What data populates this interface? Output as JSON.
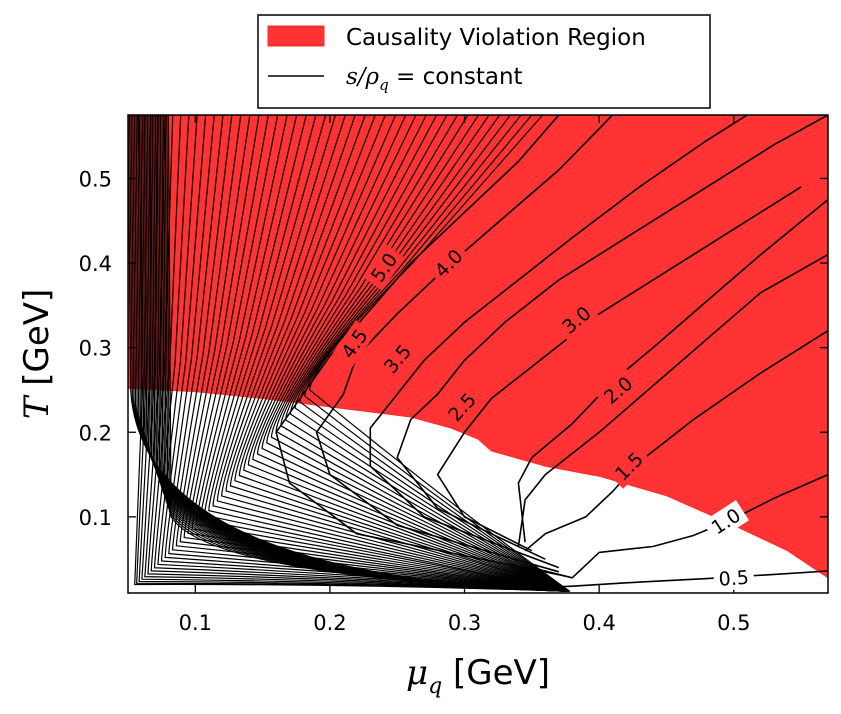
{
  "chart_data": {
    "type": "contour",
    "xlabel": {
      "symbol": "μ",
      "subscript": "q",
      "unit": "[GeV]"
    },
    "ylabel": {
      "symbol": "T",
      "unit": "[GeV]"
    },
    "xlim": [
      0.05,
      0.57
    ],
    "ylim": [
      0.01,
      0.575
    ],
    "xticks": [
      0.1,
      0.2,
      0.3,
      0.4,
      0.5
    ],
    "xtick_labels": [
      "0.1",
      "0.2",
      "0.3",
      "0.4",
      "0.5"
    ],
    "yticks": [
      0.1,
      0.2,
      0.3,
      0.4,
      0.5
    ],
    "ytick_labels": [
      "0.1",
      "0.2",
      "0.3",
      "0.4",
      "0.5"
    ],
    "legend": {
      "position": "top-center",
      "entries": [
        {
          "label": "Causality Violation Region",
          "kind": "patch",
          "color": "#ff3333"
        },
        {
          "label_math": "s/ρ",
          "label_sub": "q",
          "label_rest": " = constant",
          "kind": "line",
          "color": "#000000"
        }
      ]
    },
    "region": {
      "name": "Causality Violation Region",
      "color": "#ff3333",
      "lower_boundary": [
        [
          0.05,
          0.252
        ],
        [
          0.1,
          0.248
        ],
        [
          0.15,
          0.24
        ],
        [
          0.2,
          0.23
        ],
        [
          0.26,
          0.218
        ],
        [
          0.29,
          0.205
        ],
        [
          0.31,
          0.192
        ],
        [
          0.32,
          0.178
        ],
        [
          0.36,
          0.16
        ],
        [
          0.4,
          0.148
        ],
        [
          0.45,
          0.125
        ],
        [
          0.5,
          0.09
        ],
        [
          0.54,
          0.06
        ],
        [
          0.57,
          0.028
        ]
      ]
    },
    "contours": [
      {
        "label": "0.5",
        "points": [
          [
            0.35,
            0.016
          ],
          [
            0.38,
            0.018
          ],
          [
            0.42,
            0.022
          ],
          [
            0.48,
            0.027
          ],
          [
            0.53,
            0.032
          ],
          [
            0.57,
            0.036
          ]
        ],
        "label_at": [
          0.5,
          0.028
        ],
        "label_angle": -4
      },
      {
        "label": "1.0",
        "points": [
          [
            0.35,
            0.04
          ],
          [
            0.38,
            0.028
          ],
          [
            0.4,
            0.058
          ],
          [
            0.44,
            0.065
          ],
          [
            0.47,
            0.078
          ],
          [
            0.5,
            0.098
          ],
          [
            0.53,
            0.122
          ],
          [
            0.57,
            0.15
          ]
        ],
        "label_at": [
          0.494,
          0.095
        ],
        "label_angle": -33
      },
      {
        "label": "1.5",
        "points": [
          [
            0.345,
            0.06
          ],
          [
            0.36,
            0.08
          ],
          [
            0.39,
            0.1
          ],
          [
            0.41,
            0.13
          ],
          [
            0.43,
            0.165
          ],
          [
            0.47,
            0.215
          ],
          [
            0.52,
            0.27
          ],
          [
            0.57,
            0.32
          ]
        ],
        "label_at": [
          0.422,
          0.16
        ],
        "label_angle": -45
      },
      {
        "label": "2.0",
        "points": [
          [
            0.34,
            0.065
          ],
          [
            0.345,
            0.12
          ],
          [
            0.36,
            0.15
          ],
          [
            0.4,
            0.2
          ],
          [
            0.44,
            0.255
          ],
          [
            0.48,
            0.31
          ],
          [
            0.52,
            0.365
          ],
          [
            0.57,
            0.41
          ]
        ],
        "label_at": [
          0.414,
          0.25
        ],
        "label_angle": -40
      },
      {
        "label": "2.5",
        "points": [
          [
            0.345,
            0.07
          ],
          [
            0.34,
            0.14
          ],
          [
            0.35,
            0.17
          ],
          [
            0.38,
            0.21
          ],
          [
            0.41,
            0.26
          ],
          [
            0.44,
            0.3
          ],
          [
            0.48,
            0.355
          ],
          [
            0.52,
            0.41
          ],
          [
            0.57,
            0.475
          ]
        ],
        "label_at": [
          0.298,
          0.23
        ],
        "label_angle": -48
      },
      {
        "label": "3.0",
        "points": [
          [
            0.35,
            0.06
          ],
          [
            0.3,
            0.1
          ],
          [
            0.28,
            0.15
          ],
          [
            0.3,
            0.2
          ],
          [
            0.32,
            0.24
          ],
          [
            0.36,
            0.29
          ],
          [
            0.4,
            0.34
          ],
          [
            0.44,
            0.38
          ],
          [
            0.49,
            0.43
          ],
          [
            0.55,
            0.49
          ]
        ],
        "label_at": [
          0.383,
          0.333
        ],
        "label_angle": -40
      },
      {
        "label": "3.5",
        "points": [
          [
            0.36,
            0.05
          ],
          [
            0.28,
            0.11
          ],
          [
            0.25,
            0.17
          ],
          [
            0.26,
            0.215
          ],
          [
            0.28,
            0.245
          ],
          [
            0.3,
            0.285
          ],
          [
            0.33,
            0.33
          ],
          [
            0.37,
            0.38
          ],
          [
            0.42,
            0.43
          ],
          [
            0.47,
            0.48
          ],
          [
            0.53,
            0.54
          ],
          [
            0.57,
            0.575
          ]
        ],
        "label_at": [
          0.25,
          0.287
        ],
        "label_angle": -50
      },
      {
        "label": "4.0",
        "points": [
          [
            0.37,
            0.04
          ],
          [
            0.27,
            0.1
          ],
          [
            0.23,
            0.16
          ],
          [
            0.23,
            0.205
          ],
          [
            0.25,
            0.245
          ],
          [
            0.27,
            0.285
          ],
          [
            0.3,
            0.33
          ],
          [
            0.34,
            0.38
          ],
          [
            0.38,
            0.43
          ],
          [
            0.43,
            0.49
          ],
          [
            0.48,
            0.545
          ],
          [
            0.51,
            0.575
          ]
        ],
        "label_at": [
          0.288,
          0.4
        ],
        "label_angle": -45
      },
      {
        "label": "4.5",
        "points": [
          [
            0.37,
            0.035
          ],
          [
            0.25,
            0.09
          ],
          [
            0.2,
            0.15
          ],
          [
            0.19,
            0.2
          ],
          [
            0.21,
            0.245
          ],
          [
            0.22,
            0.29
          ],
          [
            0.25,
            0.34
          ],
          [
            0.29,
            0.4
          ],
          [
            0.33,
            0.455
          ],
          [
            0.37,
            0.51
          ],
          [
            0.41,
            0.575
          ]
        ],
        "label_at": [
          0.218,
          0.305
        ],
        "label_angle": -55
      },
      {
        "label": "5.0",
        "points": [
          [
            0.375,
            0.03
          ],
          [
            0.22,
            0.08
          ],
          [
            0.17,
            0.14
          ],
          [
            0.16,
            0.2
          ],
          [
            0.18,
            0.245
          ],
          [
            0.2,
            0.29
          ],
          [
            0.23,
            0.345
          ],
          [
            0.26,
            0.4
          ],
          [
            0.3,
            0.46
          ],
          [
            0.34,
            0.52
          ],
          [
            0.37,
            0.575
          ]
        ],
        "label_at": [
          0.24,
          0.395
        ],
        "label_angle": -55
      }
    ]
  }
}
